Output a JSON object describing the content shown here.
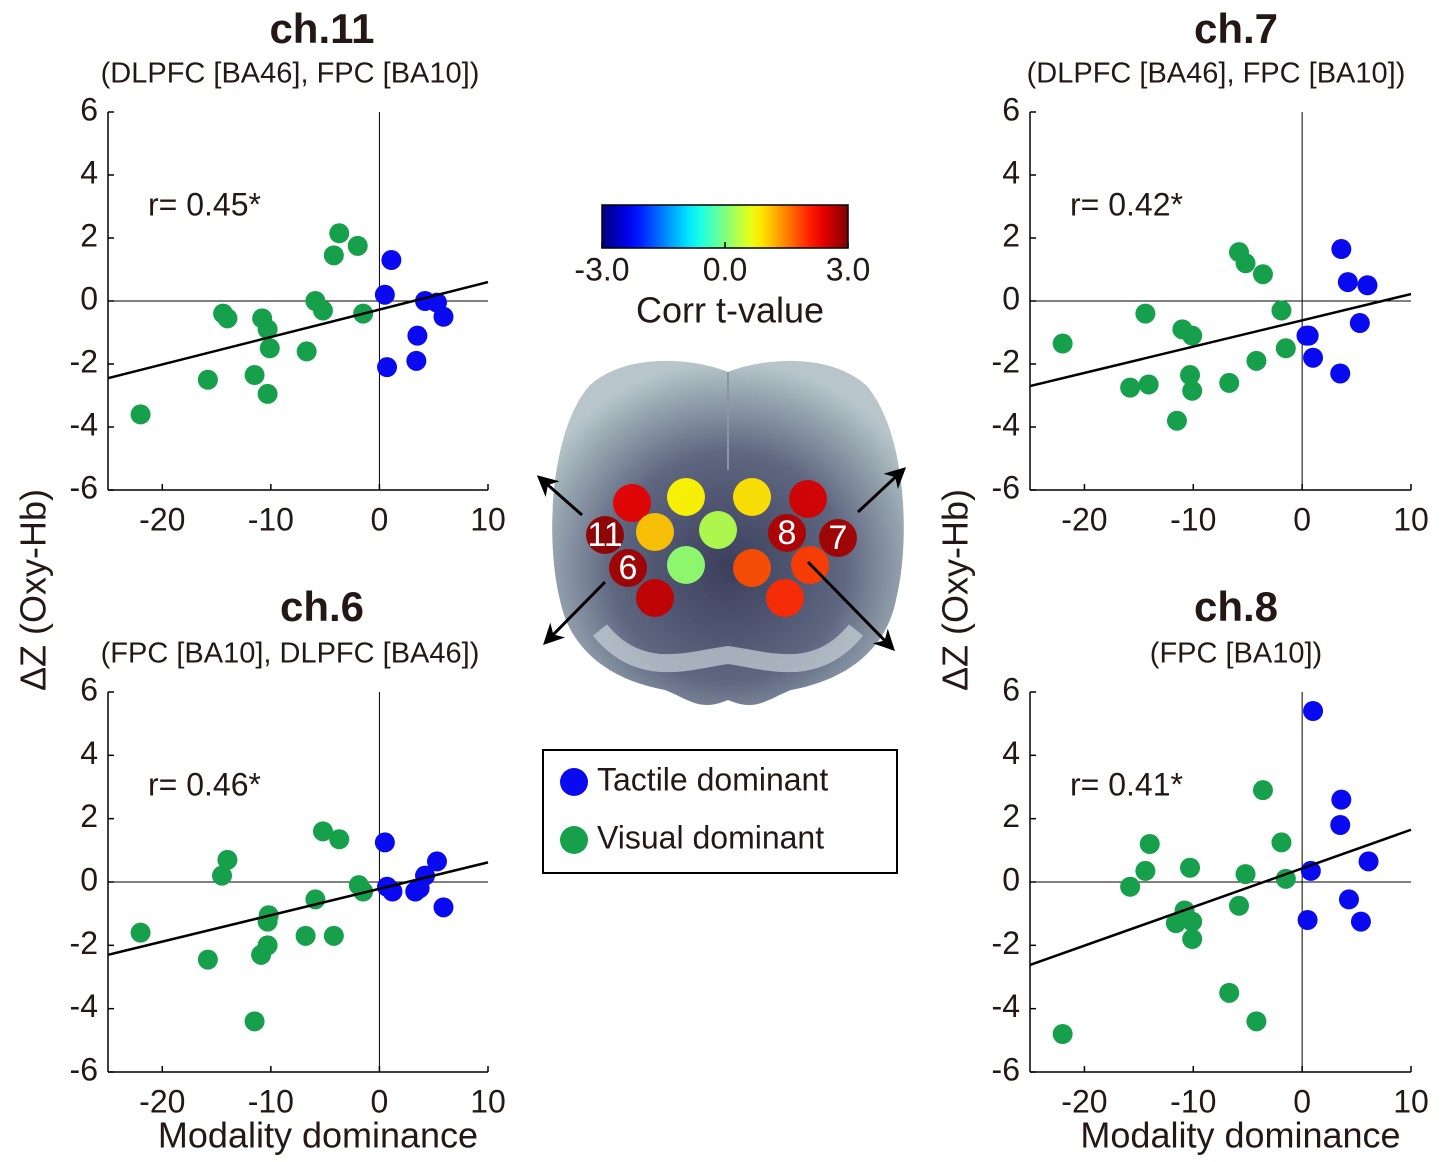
{
  "chart_data": [
    {
      "type": "scatter",
      "title": "ch.11",
      "subtitle": "(DLPFC [BA46], FPC [BA10])",
      "annotation": "r= 0.45*",
      "ylabel": "ΔZ (Oxy-Hb)",
      "xlim": [
        -25,
        10
      ],
      "ylim": [
        -6,
        6
      ],
      "xticks": [
        -20,
        -10,
        0,
        10
      ],
      "yticks": [
        -6,
        -4,
        -2,
        0,
        2,
        4,
        6
      ],
      "series": [
        {
          "name": "Tactile dominant",
          "color": "#0a0af0",
          "x": [
            1.1,
            0.5,
            0.7,
            3.5,
            3.4,
            4.2,
            5.3,
            5.9
          ],
          "values": [
            1.3,
            0.2,
            -2.1,
            -1.1,
            -1.9,
            0.0,
            -0.05,
            -0.5
          ]
        },
        {
          "name": "Visual dominant",
          "color": "#16a04c",
          "x": [
            -22,
            -15.8,
            -14.4,
            -14,
            -10.8,
            -10.3,
            -10.1,
            -10.3,
            -11.5,
            -6.7,
            -5.9,
            -5.2,
            -4.2,
            -3.7,
            -2,
            -1.5
          ],
          "values": [
            -3.6,
            -2.5,
            -0.4,
            -0.55,
            -0.55,
            -0.9,
            -1.5,
            -2.95,
            -2.35,
            -1.6,
            0,
            -0.3,
            1.45,
            2.15,
            1.75,
            -0.4
          ]
        }
      ],
      "fit": {
        "x": [
          -25,
          10
        ],
        "y": [
          -2.45,
          0.6
        ]
      }
    },
    {
      "type": "scatter",
      "title": "ch.7",
      "subtitle": "(DLPFC [BA46], FPC [BA10])",
      "annotation": "r= 0.42*",
      "ylabel": "ΔZ (Oxy-Hb)",
      "xlim": [
        -25,
        10
      ],
      "ylim": [
        -6,
        6
      ],
      "xticks": [
        -20,
        -10,
        0,
        10
      ],
      "yticks": [
        -6,
        -4,
        -2,
        0,
        2,
        4,
        6
      ],
      "series": [
        {
          "name": "Tactile dominant",
          "color": "#0a0af0",
          "x": [
            3.6,
            4.2,
            6,
            5.3,
            3.5,
            0.6,
            1,
            0.4
          ],
          "values": [
            1.65,
            0.6,
            0.5,
            -0.7,
            -2.3,
            -1.1,
            -1.8,
            -1.1
          ]
        },
        {
          "name": "Visual dominant",
          "color": "#16a04c",
          "x": [
            -22,
            -15.8,
            -14.1,
            -14.4,
            -11,
            -10.1,
            -10.3,
            -10.1,
            -11.5,
            -6.7,
            -5.8,
            -5.2,
            -3.6,
            -4.2,
            -1.9,
            -1.5
          ],
          "values": [
            -1.35,
            -2.75,
            -2.65,
            -0.4,
            -0.9,
            -1.1,
            -2.35,
            -2.85,
            -3.8,
            -2.6,
            1.55,
            1.2,
            0.85,
            -1.9,
            -0.3,
            -1.5
          ]
        }
      ],
      "fit": {
        "x": [
          -25,
          10
        ],
        "y": [
          -2.7,
          0.22
        ]
      }
    },
    {
      "type": "scatter",
      "title": "ch.6",
      "subtitle": "(FPC [BA10], DLPFC [BA46])",
      "annotation": "r= 0.46*",
      "xlabel": "Modality dominance",
      "xlim": [
        -25,
        10
      ],
      "ylim": [
        -6,
        6
      ],
      "xticks": [
        -20,
        -10,
        0,
        10
      ],
      "yticks": [
        -6,
        -4,
        -2,
        0,
        2,
        4,
        6
      ],
      "series": [
        {
          "name": "Tactile dominant",
          "color": "#0a0af0",
          "x": [
            0.5,
            5.3,
            5.9,
            4.2,
            3.7,
            3.3,
            1.2,
            0.7
          ],
          "values": [
            1.25,
            0.65,
            -0.8,
            0.2,
            -0.2,
            -0.3,
            -0.3,
            -0.15
          ]
        },
        {
          "name": "Visual dominant",
          "color": "#16a04c",
          "x": [
            -22,
            -15.8,
            -14,
            -14.5,
            -11.5,
            -10.9,
            -10.3,
            -10.2,
            -10.3,
            -6.8,
            -4.2,
            -5.9,
            -5.2,
            -3.7,
            -1.9,
            -1.5
          ],
          "values": [
            -1.6,
            -2.45,
            0.7,
            0.2,
            -4.4,
            -2.3,
            -2.0,
            -1.05,
            -1.25,
            -1.7,
            -1.7,
            -0.55,
            1.6,
            1.35,
            -0.1,
            -0.3
          ]
        }
      ],
      "fit": {
        "x": [
          -25,
          10
        ],
        "y": [
          -2.3,
          0.62
        ]
      }
    },
    {
      "type": "scatter",
      "title": "ch.8",
      "subtitle": "(FPC [BA10])",
      "annotation": "r= 0.41*",
      "xlabel": "Modality dominance",
      "xlim": [
        -25,
        10
      ],
      "ylim": [
        -6,
        6
      ],
      "xticks": [
        -20,
        -10,
        0,
        10
      ],
      "yticks": [
        -6,
        -4,
        -2,
        0,
        2,
        4,
        6
      ],
      "series": [
        {
          "name": "Tactile dominant",
          "color": "#0a0af0",
          "x": [
            1,
            3.6,
            3.5,
            6.1,
            4.3,
            5.4,
            0.5,
            0.8
          ],
          "values": [
            5.4,
            2.6,
            1.8,
            0.65,
            -0.55,
            -1.25,
            -1.2,
            0.35
          ]
        },
        {
          "name": "Visual dominant",
          "color": "#16a04c",
          "x": [
            -22,
            -15.8,
            -14.4,
            -14,
            -11.6,
            -10.8,
            -10.1,
            -10.1,
            -10.3,
            -6.7,
            -5.8,
            -5.2,
            -4.2,
            -3.6,
            -1.9,
            -1.5
          ],
          "values": [
            -4.8,
            -0.15,
            0.35,
            1.2,
            -1.3,
            -0.9,
            -1.25,
            -1.8,
            0.45,
            -3.5,
            -0.75,
            0.25,
            -4.4,
            2.9,
            1.25,
            0.1
          ]
        }
      ],
      "fit": {
        "x": [
          -25,
          10
        ],
        "y": [
          -2.62,
          1.65
        ]
      }
    }
  ],
  "colorbar": {
    "label": "Corr t-value",
    "lim": [
      -3,
      3
    ],
    "ticks": [
      {
        "value": -3,
        "label": "-3.0"
      },
      {
        "value": 0,
        "label": "0.0"
      },
      {
        "value": 3,
        "label": "3.0"
      }
    ]
  },
  "brain": {
    "labels": [
      null,
      null,
      null,
      null,
      "11",
      null,
      null,
      "8",
      "7",
      "6",
      null,
      null,
      null,
      null,
      null
    ],
    "t": [
      2.4,
      0.8,
      0.9,
      2.5,
      2.9,
      1.1,
      0.3,
      2.7,
      2.8,
      2.8,
      0.1,
      1.8,
      1.9,
      2.6,
      2.0
    ]
  }
}
